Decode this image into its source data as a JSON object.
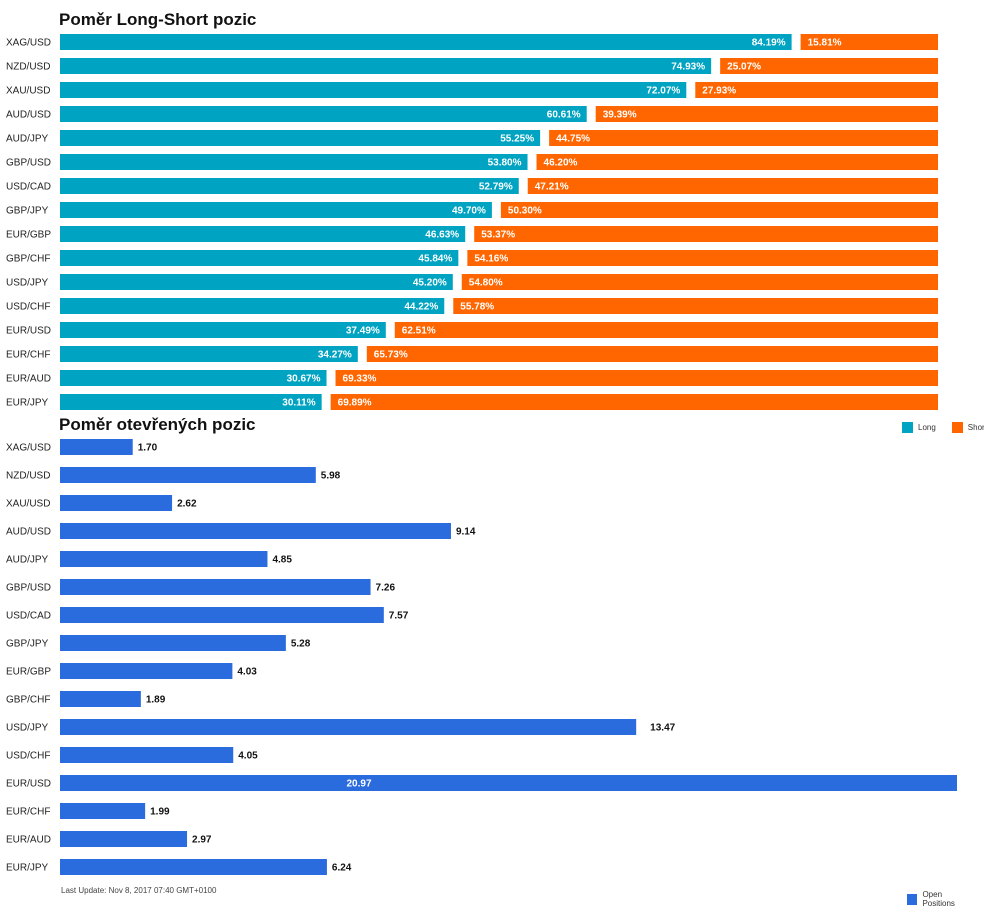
{
  "colors": {
    "long": "#00A3C1",
    "short": "#FF6600",
    "open": "#2A6BDD"
  },
  "chart_data": [
    {
      "type": "bar",
      "title": "Poměr Long-Short pozic",
      "categories": [
        "XAG/USD",
        "NZD/USD",
        "XAU/USD",
        "AUD/USD",
        "AUD/JPY",
        "GBP/USD",
        "USD/CAD",
        "GBP/JPY",
        "EUR/GBP",
        "GBP/CHF",
        "USD/JPY",
        "USD/CHF",
        "EUR/USD",
        "EUR/CHF",
        "EUR/AUD",
        "EUR/JPY"
      ],
      "series": [
        {
          "name": "Long",
          "values": [
            84.19,
            74.93,
            72.07,
            60.61,
            55.25,
            53.8,
            52.79,
            49.7,
            46.63,
            45.84,
            45.2,
            44.22,
            37.49,
            34.27,
            30.67,
            30.11
          ]
        },
        {
          "name": "Short",
          "values": [
            15.81,
            25.07,
            27.93,
            39.39,
            44.75,
            46.2,
            47.21,
            50.3,
            53.37,
            54.16,
            54.8,
            55.78,
            62.51,
            65.73,
            69.33,
            69.89
          ]
        }
      ],
      "value_suffix": "%",
      "legend_position": "bottom-right"
    },
    {
      "type": "bar",
      "title": "Poměr otevřených pozic",
      "categories": [
        "XAG/USD",
        "NZD/USD",
        "XAU/USD",
        "AUD/USD",
        "AUD/JPY",
        "GBP/USD",
        "USD/CAD",
        "GBP/JPY",
        "EUR/GBP",
        "GBP/CHF",
        "USD/JPY",
        "USD/CHF",
        "EUR/USD",
        "EUR/CHF",
        "EUR/AUD",
        "EUR/JPY"
      ],
      "series": [
        {
          "name": "Open Positions",
          "values": [
            1.7,
            5.98,
            2.62,
            9.14,
            4.85,
            7.26,
            7.57,
            5.28,
            4.03,
            1.89,
            13.47,
            4.05,
            20.97,
            1.99,
            2.97,
            6.24
          ]
        }
      ],
      "xlim": [
        0,
        20.97
      ],
      "legend_position": "bottom-right"
    }
  ],
  "footer": {
    "last_update": "Last Update: Nov 8, 2017 07:40 GMT+0100"
  }
}
